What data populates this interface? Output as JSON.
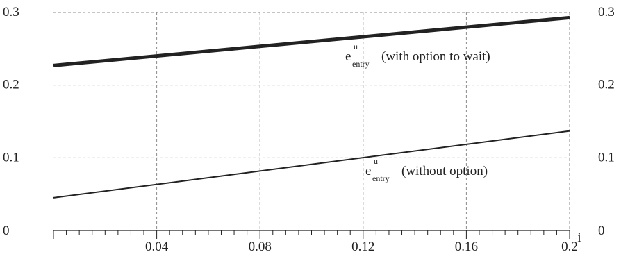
{
  "chart_data": {
    "type": "line",
    "xlabel": "i",
    "ylabel": "",
    "title": "",
    "xlim": [
      0,
      0.2
    ],
    "ylim": [
      0,
      0.3
    ],
    "x_ticks": [
      0.04,
      0.08,
      0.12,
      0.16,
      0.2
    ],
    "x_tick_labels": [
      "0.04",
      "0.08",
      "0.12",
      "0.16",
      "0.2"
    ],
    "y_ticks": [
      0,
      0.1,
      0.2,
      0.3
    ],
    "y_tick_labels_left": [
      "0",
      "0.1",
      "0.2",
      "0.3"
    ],
    "y_tick_labels_right": [
      "0",
      "0.1",
      "0.2",
      "0.3"
    ],
    "grid": true,
    "grid_style": "dashed",
    "series": [
      {
        "label_base": "e",
        "label_sup": "u",
        "label_sub": "entry",
        "label_text": "(with option to wait)",
        "x": [
          0,
          0.2
        ],
        "y": [
          0.227,
          0.293
        ],
        "color": "#222222",
        "weight": "thick"
      },
      {
        "label_base": "e",
        "label_sup": "u",
        "label_sub": "entry",
        "label_text": "(without option)",
        "x": [
          0,
          0.2
        ],
        "y": [
          0.045,
          0.137
        ],
        "color": "#222222",
        "weight": "thin"
      }
    ]
  }
}
